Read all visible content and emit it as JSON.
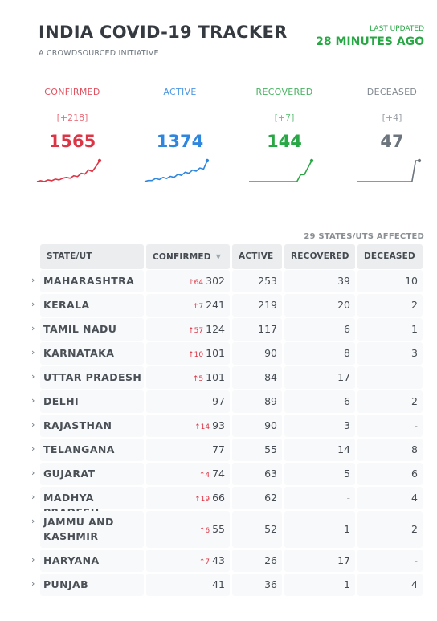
{
  "header": {
    "title": "INDIA COVID-19 TRACKER",
    "subtitle": "A CROWDSOURCED INITIATIVE",
    "updated_label": "LAST UPDATED",
    "updated_value": "28 MINUTES AGO"
  },
  "cards": [
    {
      "label": "CONFIRMED",
      "delta": "[+218]",
      "value": "1565",
      "color": "#dc3545",
      "series": [
        2,
        3,
        2,
        4,
        3,
        5,
        4,
        6,
        7,
        6,
        9,
        8,
        12,
        11,
        16,
        14,
        20,
        27
      ]
    },
    {
      "label": "ACTIVE",
      "delta": "",
      "value": "1374",
      "color": "#2e86de",
      "series": [
        2,
        3,
        3,
        5,
        4,
        6,
        5,
        7,
        6,
        9,
        8,
        11,
        10,
        13,
        12,
        15,
        14,
        22
      ]
    },
    {
      "label": "RECOVERED",
      "delta": "[+7]",
      "value": "144",
      "color": "#28a745",
      "series": [
        1,
        1,
        1,
        1,
        1,
        1,
        1,
        1,
        1,
        1,
        1,
        1,
        1,
        1,
        2,
        2,
        3,
        4
      ]
    },
    {
      "label": "DECEASED",
      "delta": "[+4]",
      "value": "47",
      "color": "#6c757d",
      "series": [
        1,
        1,
        1,
        1,
        1,
        1,
        1,
        1,
        1,
        1,
        1,
        1,
        1,
        1,
        1,
        1,
        2,
        2
      ]
    }
  ],
  "states_affected": "29 STATES/UTS AFFECTED",
  "table": {
    "headers": [
      "STATE/UT",
      "CONFIRMED",
      "ACTIVE",
      "RECOVERED",
      "DECEASED"
    ],
    "rows": [
      {
        "state": "MAHARASHTRA",
        "delta": "↑64",
        "confirmed": "302",
        "active": "253",
        "recovered": "39",
        "deceased": "10"
      },
      {
        "state": "KERALA",
        "delta": "↑7",
        "confirmed": "241",
        "active": "219",
        "recovered": "20",
        "deceased": "2"
      },
      {
        "state": "TAMIL NADU",
        "delta": "↑57",
        "confirmed": "124",
        "active": "117",
        "recovered": "6",
        "deceased": "1"
      },
      {
        "state": "KARNATAKA",
        "delta": "↑10",
        "confirmed": "101",
        "active": "90",
        "recovered": "8",
        "deceased": "3"
      },
      {
        "state": "UTTAR PRADESH",
        "delta": "↑5",
        "confirmed": "101",
        "active": "84",
        "recovered": "17",
        "deceased": "-"
      },
      {
        "state": "DELHI",
        "delta": "",
        "confirmed": "97",
        "active": "89",
        "recovered": "6",
        "deceased": "2"
      },
      {
        "state": "RAJASTHAN",
        "delta": "↑14",
        "confirmed": "93",
        "active": "90",
        "recovered": "3",
        "deceased": "-"
      },
      {
        "state": "TELANGANA",
        "delta": "",
        "confirmed": "77",
        "active": "55",
        "recovered": "14",
        "deceased": "8"
      },
      {
        "state": "GUJARAT",
        "delta": "↑4",
        "confirmed": "74",
        "active": "63",
        "recovered": "5",
        "deceased": "6"
      },
      {
        "state": "MADHYA PRADESH",
        "delta": "↑19",
        "confirmed": "66",
        "active": "62",
        "recovered": "-",
        "deceased": "4"
      },
      {
        "state": "JAMMU AND KASHMIR",
        "delta": "↑6",
        "confirmed": "55",
        "active": "52",
        "recovered": "1",
        "deceased": "2"
      },
      {
        "state": "HARYANA",
        "delta": "↑7",
        "confirmed": "43",
        "active": "26",
        "recovered": "17",
        "deceased": "-"
      },
      {
        "state": "PUNJAB",
        "delta": "",
        "confirmed": "41",
        "active": "36",
        "recovered": "1",
        "deceased": "4"
      }
    ]
  },
  "icons": {
    "row_expand": "chevron-right-icon",
    "sort": "sort-down-icon"
  }
}
